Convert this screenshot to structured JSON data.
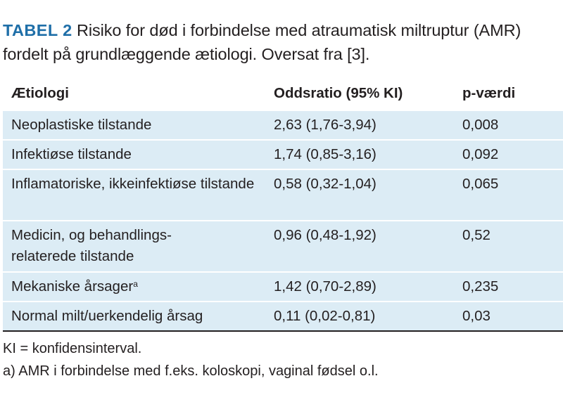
{
  "caption": {
    "label": "TABEL 2",
    "text": "Risiko for død i forbindelse med atraumatisk miltruptur (AMR) fordelt på grundlæggende ætiologi. Oversat fra [3]."
  },
  "table": {
    "headers": [
      "Ætiologi",
      "Oddsratio (95% KI)",
      "p-værdi"
    ],
    "rows": [
      {
        "etiology": "Neoplastiske tilstande",
        "odds": "2,63 (1,76-3,94)",
        "p": "0,008"
      },
      {
        "etiology": "Infektiøse tilstande",
        "odds": "1,74 (0,85-3,16)",
        "p": "0,092"
      },
      {
        "etiology": "Inflamatoriske, ikkeinfektiøse tilstande",
        "odds": "0,58 (0,32-1,04)",
        "p": "0,065"
      },
      {
        "etiology": "Medicin, og behandlings-relaterede tilstande",
        "odds": "0,96 (0,48-1,92)",
        "p": "0,52"
      },
      {
        "etiology": "Mekaniske årsager",
        "superscript": "a",
        "odds": "1,42 (0,70-2,89)",
        "p": "0,235"
      },
      {
        "etiology": "Normal milt/uerkendelig årsag",
        "odds": "0,11 (0,02-0,81)",
        "p": "0,03"
      }
    ]
  },
  "footnotes": [
    "KI = konfidensinterval.",
    "a) AMR i forbindelse med f.eks. koloskopi, vaginal fødsel o.l."
  ],
  "colors": {
    "label": "#1f6fa8",
    "row_background": "#dcecf5",
    "text": "#231f20"
  }
}
